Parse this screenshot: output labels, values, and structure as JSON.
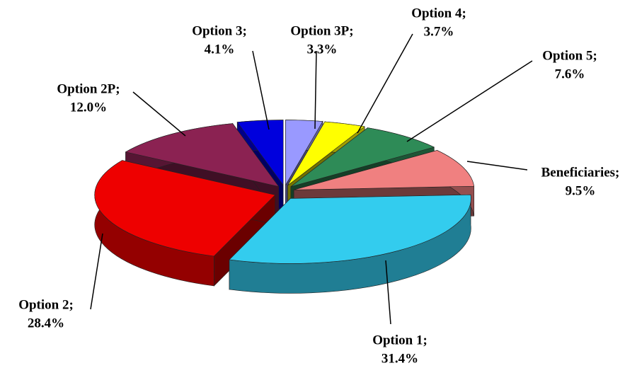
{
  "chart_data": {
    "type": "pie",
    "categories": [
      "Option 3P;",
      "Option 4;",
      "Option 5;",
      "Beneficiaries;",
      "Option 1;",
      "Option 2;",
      "Option 2P;",
      "Option 3;"
    ],
    "values": [
      3.3,
      3.7,
      7.6,
      9.5,
      31.4,
      28.4,
      12.0,
      4.1
    ],
    "value_labels": [
      "3.3%",
      "3.7%",
      "7.6%",
      "9.5%",
      "31.4%",
      "28.4%",
      "12.0%",
      "4.1%"
    ],
    "colors": [
      "#9999ff",
      "#ffff00",
      "#2e8b57",
      "#f08080",
      "#33ccee",
      "#ee0000",
      "#8b2252",
      "#0000dd"
    ],
    "style": "3d-exploded"
  }
}
